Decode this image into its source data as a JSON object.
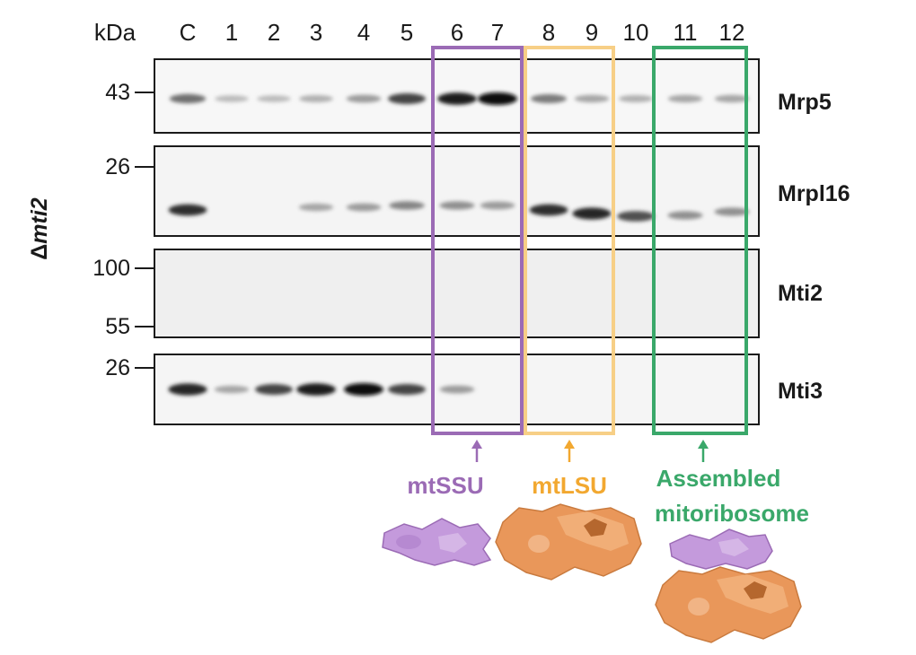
{
  "header": {
    "kda_label": "kDa"
  },
  "lanes": [
    "C",
    "1",
    "2",
    "3",
    "4",
    "5",
    "6",
    "7",
    "8",
    "9",
    "10",
    "11",
    "12"
  ],
  "strain_label": {
    "delta": "Δ",
    "gene": "mti2"
  },
  "panels": [
    {
      "protein": "Mrp5",
      "markers": [
        "43"
      ]
    },
    {
      "protein": "Mrpl16",
      "markers": [
        "26"
      ]
    },
    {
      "protein": "Mti2",
      "markers": [
        "100",
        "55"
      ]
    },
    {
      "protein": "Mti3",
      "markers": [
        "26"
      ]
    }
  ],
  "bands": {
    "mrp5": [
      0.55,
      0.2,
      0.2,
      0.25,
      0.35,
      0.75,
      0.95,
      1.0,
      0.5,
      0.3,
      0.25,
      0.3,
      0.3
    ],
    "mrpl16": [
      0.85,
      0,
      0,
      0.3,
      0.35,
      0.45,
      0.4,
      0.35,
      0.85,
      0.9,
      0.7,
      0.4,
      0.4
    ],
    "mti3": [
      0.9,
      0.3,
      0.75,
      0.95,
      1.0,
      0.75,
      0.35,
      0,
      0,
      0,
      0,
      0,
      0
    ]
  },
  "fractions": [
    {
      "label": "mtSSU",
      "color": "#9b6bb5",
      "lanes": [
        "6",
        "7"
      ]
    },
    {
      "label": "mtLSU",
      "color": "#f2a830",
      "lanes": [
        "8",
        "9"
      ]
    },
    {
      "label_line1": "Assembled",
      "label_line2": "mitoribosome",
      "color": "#3aa86a",
      "lanes": [
        "11",
        "12"
      ]
    }
  ],
  "icons": [
    "small-subunit-icon",
    "large-subunit-icon",
    "assembled-mitoribosome-icon"
  ]
}
